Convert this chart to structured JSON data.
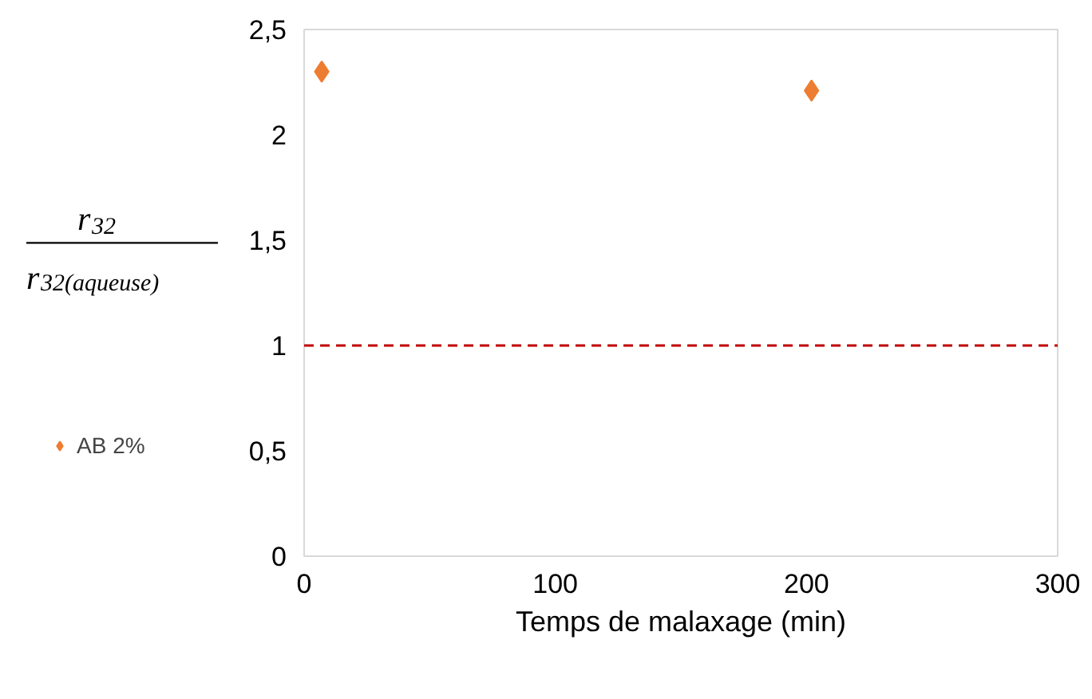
{
  "chart_data": {
    "type": "scatter",
    "xlabel": "Temps de malaxage (min)",
    "ylabel": "r$_{32}$\nr$_{32(aqueuse)}$",
    "x": [
      7,
      202
    ],
    "series": [
      {
        "name": "AB 2%",
        "color": "#ed7d31",
        "values": [
          2.3,
          2.21
        ]
      }
    ],
    "marker": "diamond",
    "xlim": [
      0,
      300
    ],
    "xticks": [
      0,
      100,
      200,
      300
    ],
    "ylim": [
      0,
      2.5
    ],
    "yticks": [
      0,
      {
        "value": 0.5,
        "label": "0,5"
      },
      1,
      {
        "value": 1.5,
        "label": "1,5"
      },
      2,
      {
        "value": 2.5,
        "label": "2,5"
      }
    ],
    "ref_lines": [
      {
        "axis": "y",
        "value": 1,
        "color": "#c00000",
        "line_style": "dashed"
      }
    ],
    "grid": false,
    "legend": "left"
  }
}
